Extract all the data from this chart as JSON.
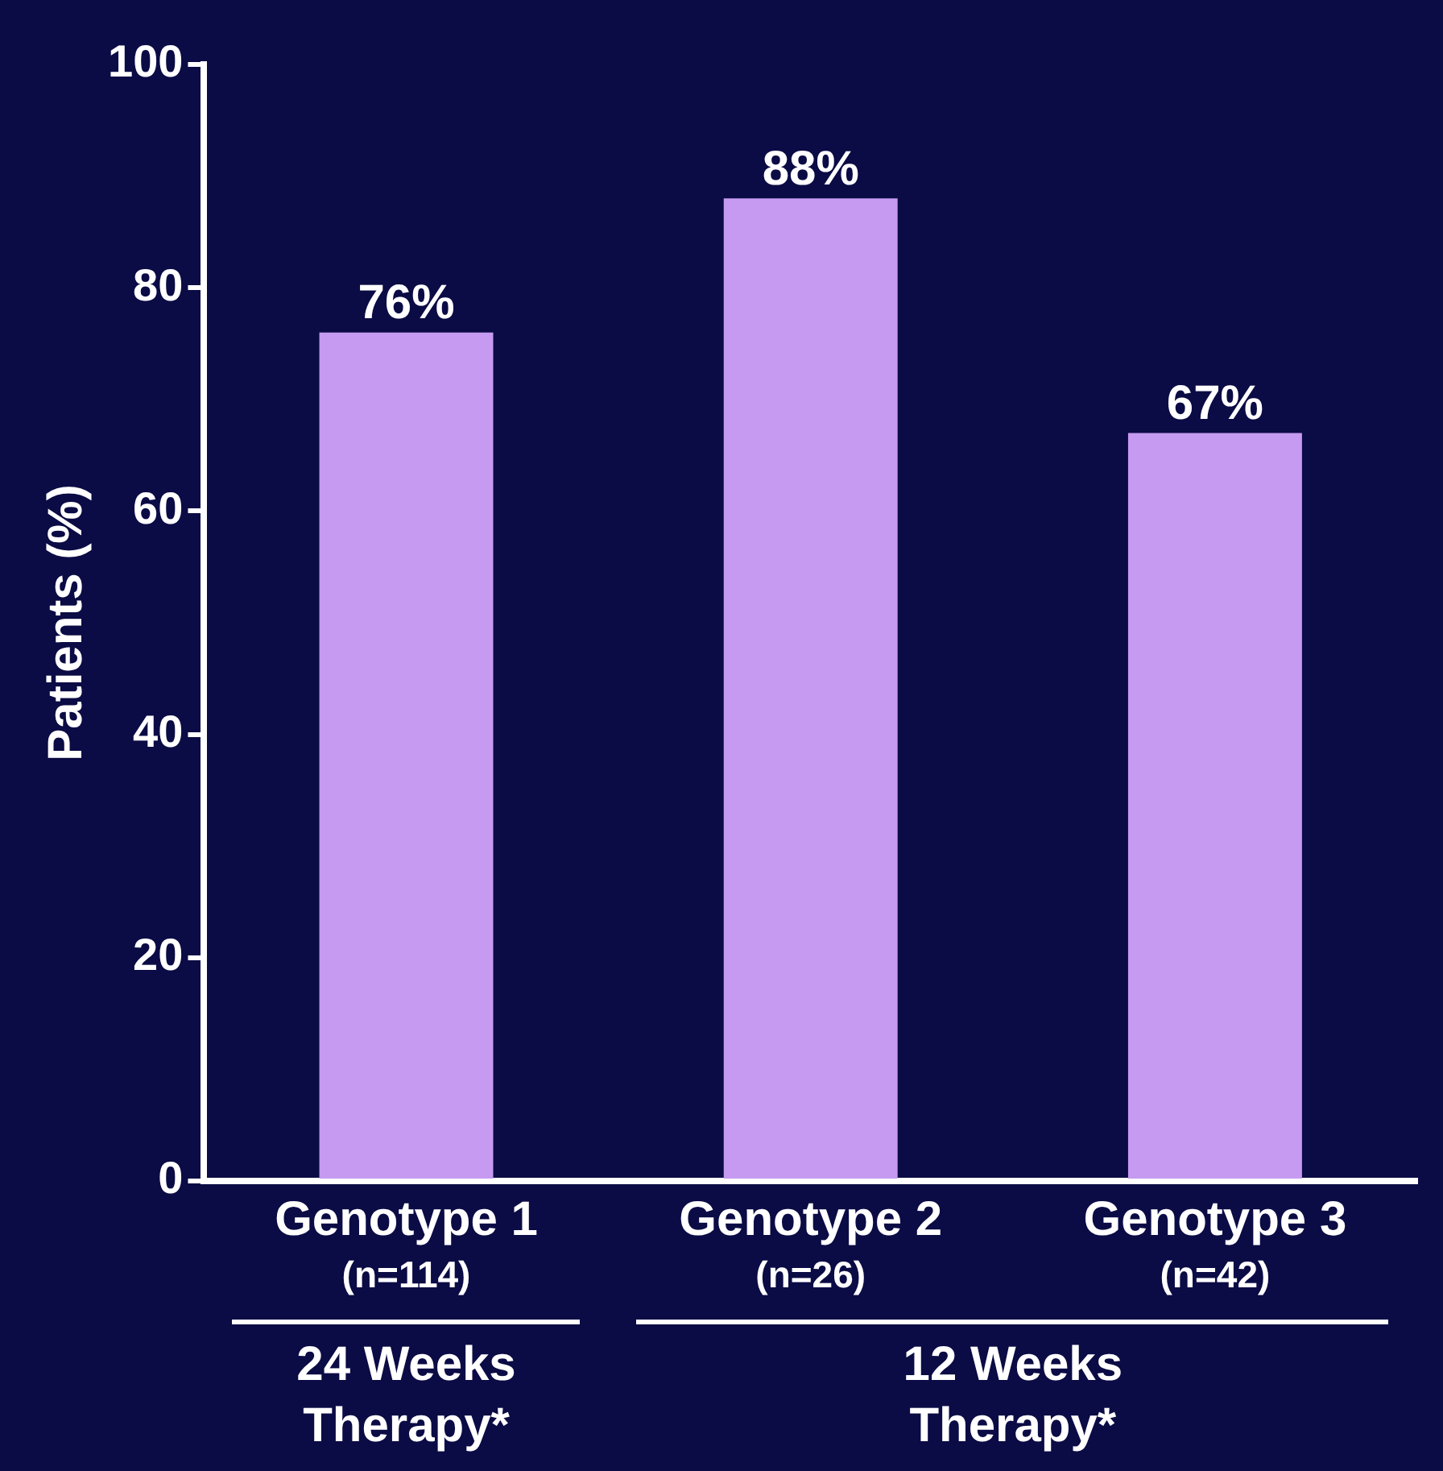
{
  "chart_data": {
    "type": "bar",
    "ylabel": "Patients (%)",
    "categories": [
      "Genotype 1\n(n=114)",
      "Genotype 2\n(n=26)",
      "Genotype 3\n(n=42)"
    ],
    "values": [
      76,
      88,
      67
    ],
    "color": "#c69af0",
    "value_labels": [
      "76%",
      "88%",
      "67%"
    ],
    "ylim": [
      0,
      100
    ],
    "yticks": [
      0,
      20,
      40,
      60,
      80,
      100
    ],
    "grid": false,
    "legend": false,
    "annotations": [
      "24 Weeks\nTherapy*",
      "12 Weeks\nTherapy*"
    ]
  }
}
